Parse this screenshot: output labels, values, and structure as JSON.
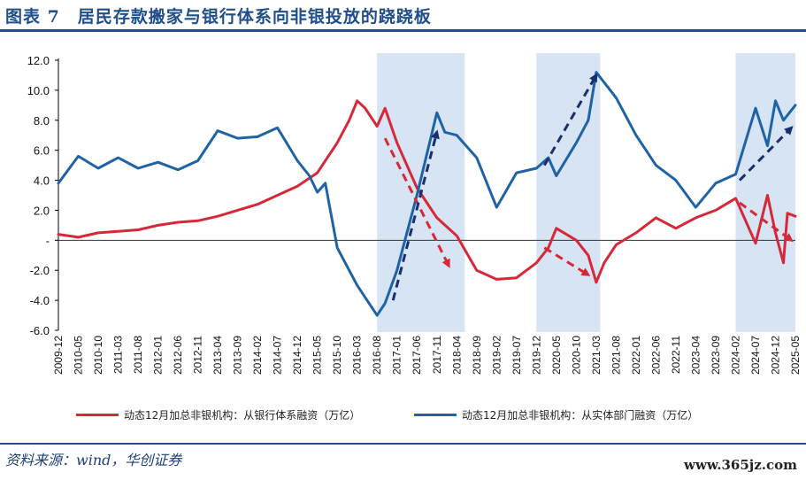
{
  "page": {
    "title": "图表 7　居民存款搬家与银行体系向非银投放的跷跷板",
    "source": "资料来源：wind，华创证券",
    "watermark": "www.365jz.com"
  },
  "colors": {
    "red_series": "#d62839",
    "blue_series": "#1f63a6",
    "shade": "#d6e4f3",
    "arrow": "#1a2f6e",
    "title": "#1f4e8c"
  },
  "chart_data": {
    "type": "line",
    "title": "",
    "xlabel": "",
    "ylabel": "",
    "ylim": [
      -6,
      12
    ],
    "yticks": [
      "12.0",
      "10.0",
      "8.0",
      "6.0",
      "4.0",
      "2.0",
      "-",
      "-2.0",
      "-4.0",
      "-6.0"
    ],
    "ytick_values": [
      12,
      10,
      8,
      6,
      4,
      2,
      0,
      -2,
      -4,
      -6
    ],
    "xticks": [
      "2009-12",
      "2010-05",
      "2010-10",
      "2011-03",
      "2011-08",
      "2012-01",
      "2012-06",
      "2012-11",
      "2013-04",
      "2013-09",
      "2014-02",
      "2014-07",
      "2014-12",
      "2015-05",
      "2015-10",
      "2016-03",
      "2016-08",
      "2017-01",
      "2017-06",
      "2017-11",
      "2018-04",
      "2018-09",
      "2019-02",
      "2019-07",
      "2019-12",
      "2020-05",
      "2020-10",
      "2021-03",
      "2021-08",
      "2022-01",
      "2022-06",
      "2022-11",
      "2023-04",
      "2023-09",
      "2024-02",
      "2024-07",
      "2024-12",
      "2025-05"
    ],
    "grid": false,
    "legend_position": "bottom",
    "shaded_periods": [
      [
        "2016-08",
        "2018-06"
      ],
      [
        "2019-12",
        "2021-04"
      ],
      [
        "2024-02",
        "2025-05"
      ]
    ],
    "series": [
      {
        "name": "动态12月加总非银机构：从银行体系融资（万亿）",
        "points": [
          [
            "2009-12",
            0.4
          ],
          [
            "2010-05",
            0.2
          ],
          [
            "2010-10",
            0.5
          ],
          [
            "2011-03",
            0.6
          ],
          [
            "2011-08",
            0.7
          ],
          [
            "2012-01",
            1.0
          ],
          [
            "2012-06",
            1.2
          ],
          [
            "2012-11",
            1.3
          ],
          [
            "2013-04",
            1.6
          ],
          [
            "2013-09",
            2.0
          ],
          [
            "2014-02",
            2.4
          ],
          [
            "2014-07",
            3.0
          ],
          [
            "2014-12",
            3.6
          ],
          [
            "2015-05",
            4.5
          ],
          [
            "2015-10",
            6.5
          ],
          [
            "2016-01",
            8.0
          ],
          [
            "2016-03",
            9.3
          ],
          [
            "2016-05",
            8.8
          ],
          [
            "2016-08",
            7.6
          ],
          [
            "2016-10",
            8.8
          ],
          [
            "2017-01",
            6.5
          ],
          [
            "2017-06",
            3.5
          ],
          [
            "2017-11",
            1.5
          ],
          [
            "2018-04",
            0.3
          ],
          [
            "2018-09",
            -2.0
          ],
          [
            "2019-02",
            -2.6
          ],
          [
            "2019-07",
            -2.5
          ],
          [
            "2019-12",
            -1.5
          ],
          [
            "2020-03",
            -0.5
          ],
          [
            "2020-05",
            0.8
          ],
          [
            "2020-10",
            0.0
          ],
          [
            "2021-01",
            -1.0
          ],
          [
            "2021-03",
            -2.8
          ],
          [
            "2021-05",
            -1.5
          ],
          [
            "2021-08",
            -0.3
          ],
          [
            "2022-01",
            0.5
          ],
          [
            "2022-06",
            1.5
          ],
          [
            "2022-11",
            0.8
          ],
          [
            "2023-04",
            1.5
          ],
          [
            "2023-09",
            2.0
          ],
          [
            "2024-02",
            2.8
          ],
          [
            "2024-07",
            -0.2
          ],
          [
            "2024-10",
            3.0
          ],
          [
            "2024-12",
            0.5
          ],
          [
            "2025-02",
            -1.5
          ],
          [
            "2025-03",
            1.8
          ],
          [
            "2025-05",
            1.6
          ]
        ]
      },
      {
        "name": "动态12月加总非银机构：从实体部门融资（万亿）",
        "points": [
          [
            "2009-12",
            3.8
          ],
          [
            "2010-05",
            5.6
          ],
          [
            "2010-10",
            4.8
          ],
          [
            "2011-03",
            5.5
          ],
          [
            "2011-08",
            4.8
          ],
          [
            "2012-01",
            5.2
          ],
          [
            "2012-06",
            4.7
          ],
          [
            "2012-11",
            5.3
          ],
          [
            "2013-04",
            7.3
          ],
          [
            "2013-09",
            6.8
          ],
          [
            "2014-02",
            6.9
          ],
          [
            "2014-07",
            7.5
          ],
          [
            "2014-12",
            5.3
          ],
          [
            "2015-03",
            4.3
          ],
          [
            "2015-05",
            3.2
          ],
          [
            "2015-07",
            3.8
          ],
          [
            "2015-10",
            -0.5
          ],
          [
            "2016-03",
            -3.0
          ],
          [
            "2016-08",
            -5.0
          ],
          [
            "2016-10",
            -4.2
          ],
          [
            "2017-01",
            -2.0
          ],
          [
            "2017-06",
            3.0
          ],
          [
            "2017-11",
            8.5
          ],
          [
            "2018-01",
            7.2
          ],
          [
            "2018-04",
            7.0
          ],
          [
            "2018-09",
            5.5
          ],
          [
            "2019-02",
            2.2
          ],
          [
            "2019-07",
            4.5
          ],
          [
            "2019-12",
            4.8
          ],
          [
            "2020-03",
            5.5
          ],
          [
            "2020-05",
            4.3
          ],
          [
            "2020-10",
            6.5
          ],
          [
            "2021-01",
            8.0
          ],
          [
            "2021-03",
            11.2
          ],
          [
            "2021-08",
            9.5
          ],
          [
            "2022-01",
            7.0
          ],
          [
            "2022-06",
            5.0
          ],
          [
            "2022-11",
            4.0
          ],
          [
            "2023-04",
            2.2
          ],
          [
            "2023-09",
            3.8
          ],
          [
            "2024-02",
            4.4
          ],
          [
            "2024-07",
            8.8
          ],
          [
            "2024-10",
            6.3
          ],
          [
            "2024-12",
            9.3
          ],
          [
            "2025-02",
            8.0
          ],
          [
            "2025-05",
            9.0
          ]
        ]
      }
    ],
    "annotations": [
      {
        "type": "arrow",
        "color": "red",
        "from": [
          "2016-10",
          6.8
        ],
        "to": [
          "2018-02",
          -1.7
        ]
      },
      {
        "type": "arrow",
        "color": "navy",
        "from": [
          "2016-12",
          -4.0
        ],
        "to": [
          "2017-11",
          7.2
        ]
      },
      {
        "type": "arrow",
        "color": "red",
        "from": [
          "2020-02",
          -0.5
        ],
        "to": [
          "2021-01",
          -2.3
        ]
      },
      {
        "type": "arrow",
        "color": "navy",
        "from": [
          "2020-02",
          5.0
        ],
        "to": [
          "2021-03",
          11.0
        ]
      },
      {
        "type": "arrow",
        "color": "red",
        "from": [
          "2024-03",
          2.5
        ],
        "to": [
          "2025-04",
          0.0
        ]
      },
      {
        "type": "arrow",
        "color": "navy",
        "from": [
          "2024-03",
          4.0
        ],
        "to": [
          "2025-04",
          7.5
        ]
      }
    ]
  }
}
